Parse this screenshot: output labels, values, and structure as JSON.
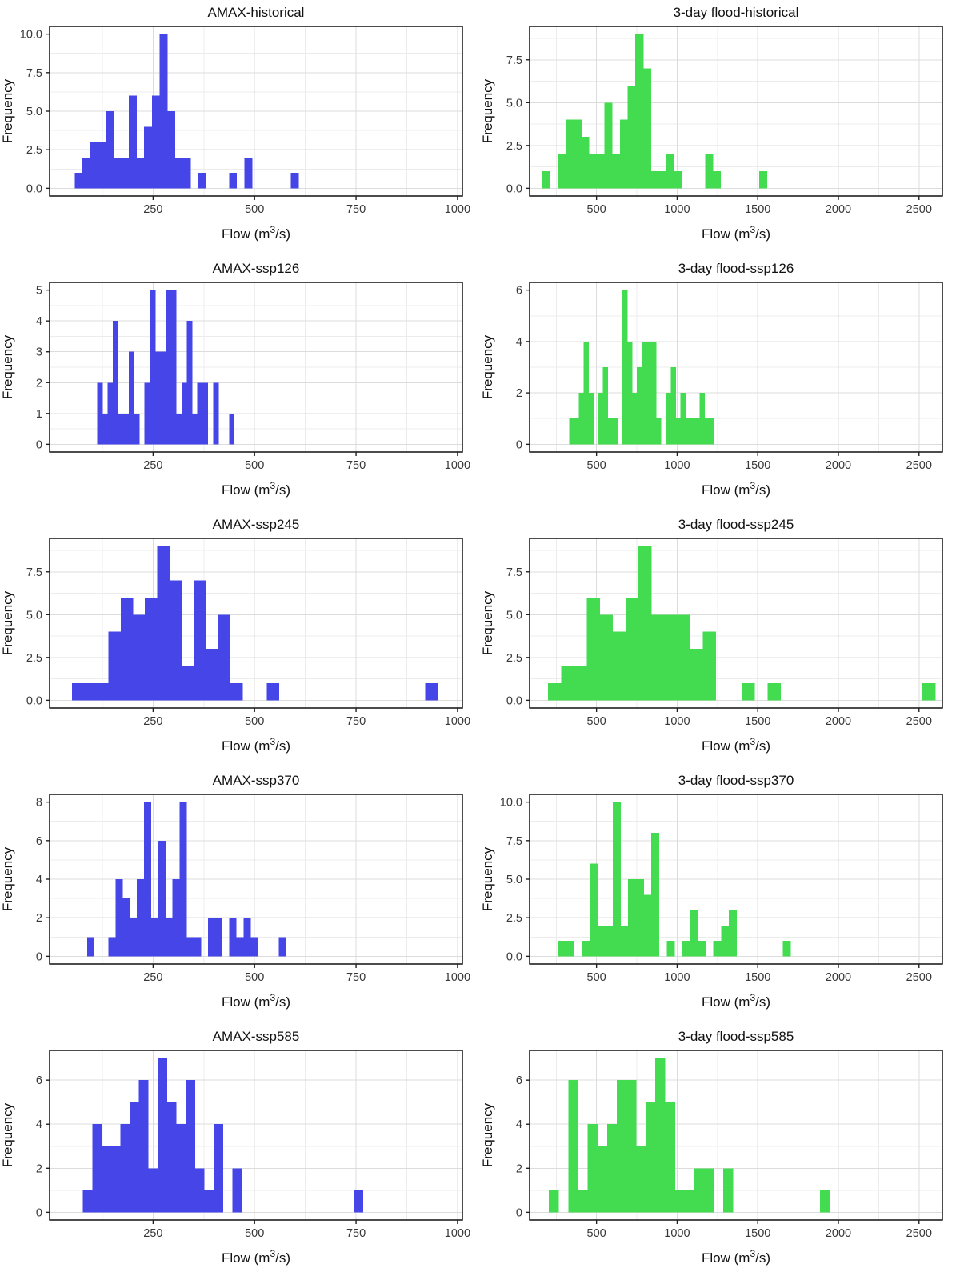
{
  "figure": {
    "background": "#ffffff",
    "xlabel_parts": {
      "pre": "Flow (m",
      "sup": "3",
      "post": "/s)"
    },
    "ylabel": "Frequency",
    "colors": {
      "amax_blue": "#4646E8",
      "flood_green": "#43DC51"
    },
    "style": {
      "panel_border": "#000000",
      "grid_major": "#DCDCDC",
      "grid_minor": "#ECECEC",
      "tick_color": "#222222",
      "tick_label_color": "#383838",
      "title_color": "#111111"
    }
  },
  "chart_data": [
    {
      "type": "bar",
      "subtype": "histogram",
      "title": "AMAX-historical",
      "series": "AMAX historical",
      "xlabel": "Flow (m³/s)",
      "ylabel": "Frequency",
      "color": "#4646E8",
      "bin_start": 57,
      "bin_width": 19,
      "counts": [
        1,
        2,
        3,
        3,
        5,
        2,
        2,
        6,
        2,
        4,
        6,
        10,
        5,
        2,
        2,
        0,
        1,
        0,
        0,
        0,
        1,
        0,
        2,
        0,
        0,
        0,
        0,
        0,
        1
      ],
      "x_ticks": [
        250,
        500,
        750,
        1000
      ],
      "x_tick_labels": [
        "250",
        "500",
        "750",
        "1000"
      ],
      "y_ticks": [
        0,
        2.5,
        5,
        7.5,
        10
      ],
      "y_tick_labels": [
        "0.0",
        "2.5",
        "5.0",
        "7.5",
        "10.0"
      ],
      "xlim": [
        -5,
        1012
      ],
      "grid": true,
      "legend": "none"
    },
    {
      "type": "bar",
      "subtype": "histogram",
      "title": "3-day flood-historical",
      "series": "3-day flood historical",
      "xlabel": "Flow (m³/s)",
      "ylabel": "Frequency",
      "color": "#43DC51",
      "bin_start": 165,
      "bin_width": 48,
      "counts": [
        1,
        0,
        2,
        4,
        4,
        3,
        2,
        2,
        5,
        2,
        4,
        6,
        9,
        7,
        1,
        1,
        2,
        1,
        0,
        0,
        0,
        2,
        1,
        0,
        0,
        0,
        0,
        0,
        1
      ],
      "x_ticks": [
        500,
        1000,
        1500,
        2000,
        2500
      ],
      "x_tick_labels": [
        "500",
        "1000",
        "1500",
        "2000",
        "2500"
      ],
      "y_ticks": [
        0,
        2.5,
        5,
        7.5
      ],
      "y_tick_labels": [
        "0.0",
        "2.5",
        "5.0",
        "7.5"
      ],
      "xlim": [
        85,
        2645
      ],
      "grid": true,
      "legend": "none"
    },
    {
      "type": "bar",
      "subtype": "histogram",
      "title": "AMAX-ssp126",
      "series": "AMAX ssp126",
      "xlabel": "Flow (m³/s)",
      "ylabel": "Frequency",
      "color": "#4646E8",
      "bin_start": 112,
      "bin_width": 13,
      "counts": [
        2,
        1,
        2,
        4,
        1,
        1,
        3,
        1,
        0,
        2,
        5,
        3,
        3,
        5,
        5,
        1,
        2,
        4,
        1,
        2,
        2,
        0,
        2,
        0,
        0,
        1
      ],
      "x_ticks": [
        250,
        500,
        750,
        1000
      ],
      "x_tick_labels": [
        "250",
        "500",
        "750",
        "1000"
      ],
      "y_ticks": [
        0,
        1,
        2,
        3,
        4,
        5
      ],
      "y_tick_labels": [
        "0",
        "1",
        "2",
        "3",
        "4",
        "5"
      ],
      "xlim": [
        -5,
        1012
      ],
      "grid": true,
      "legend": "none"
    },
    {
      "type": "bar",
      "subtype": "histogram",
      "title": "3-day flood-ssp126",
      "series": "3-day flood ssp126",
      "xlabel": "Flow (m³/s)",
      "ylabel": "Frequency",
      "color": "#43DC51",
      "bin_start": 330,
      "bin_width": 30,
      "counts": [
        1,
        1,
        2,
        4,
        2,
        0,
        2,
        3,
        1,
        1,
        0,
        6,
        4,
        2,
        3,
        4,
        4,
        4,
        1,
        0,
        2,
        3,
        1,
        2,
        1,
        1,
        1,
        2,
        1,
        1
      ],
      "x_ticks": [
        500,
        1000,
        1500,
        2000,
        2500
      ],
      "x_tick_labels": [
        "500",
        "1000",
        "1500",
        "2000",
        "2500"
      ],
      "y_ticks": [
        0,
        2,
        4,
        6
      ],
      "y_tick_labels": [
        "0",
        "2",
        "4",
        "6"
      ],
      "xlim": [
        85,
        2645
      ],
      "grid": true,
      "legend": "none"
    },
    {
      "type": "bar",
      "subtype": "histogram",
      "title": "AMAX-ssp245",
      "series": "AMAX ssp245",
      "xlabel": "Flow (m³/s)",
      "ylabel": "Frequency",
      "color": "#4646E8",
      "bin_start": 50,
      "bin_width": 30,
      "counts": [
        1,
        1,
        1,
        4,
        6,
        5,
        6,
        9,
        7,
        2,
        7,
        3,
        5,
        1,
        0,
        0,
        1,
        0,
        0,
        0,
        0,
        0,
        0,
        0,
        0,
        0,
        0,
        0,
        0,
        1
      ],
      "x_ticks": [
        250,
        500,
        750,
        1000
      ],
      "x_tick_labels": [
        "250",
        "500",
        "750",
        "1000"
      ],
      "y_ticks": [
        0,
        2.5,
        5,
        7.5
      ],
      "y_tick_labels": [
        "0.0",
        "2.5",
        "5.0",
        "7.5"
      ],
      "xlim": [
        -5,
        1012
      ],
      "grid": true,
      "legend": "none"
    },
    {
      "type": "bar",
      "subtype": "histogram",
      "title": "3-day flood-ssp245",
      "series": "3-day flood ssp245",
      "xlabel": "Flow (m³/s)",
      "ylabel": "Frequency",
      "color": "#43DC51",
      "bin_start": 200,
      "bin_width": 80,
      "counts": [
        1,
        2,
        2,
        6,
        5,
        4,
        6,
        9,
        5,
        5,
        5,
        3,
        4,
        0,
        0,
        1,
        0,
        1,
        0,
        0,
        0,
        0,
        0,
        0,
        0,
        0,
        0,
        0,
        0,
        1
      ],
      "x_ticks": [
        500,
        1000,
        1500,
        2000,
        2500
      ],
      "x_tick_labels": [
        "500",
        "1000",
        "1500",
        "2000",
        "2500"
      ],
      "y_ticks": [
        0,
        2.5,
        5,
        7.5
      ],
      "y_tick_labels": [
        "0.0",
        "2.5",
        "5.0",
        "7.5"
      ],
      "xlim": [
        85,
        2645
      ],
      "grid": true,
      "legend": "none"
    },
    {
      "type": "bar",
      "subtype": "histogram",
      "title": "AMAX-ssp370",
      "series": "AMAX ssp370",
      "xlabel": "Flow (m³/s)",
      "ylabel": "Frequency",
      "color": "#4646E8",
      "bin_start": 87.5,
      "bin_width": 17.5,
      "counts": [
        1,
        0,
        0,
        1,
        4,
        3,
        2,
        4,
        8,
        2,
        6,
        2,
        4,
        8,
        1,
        1,
        0,
        2,
        2,
        0,
        2,
        1,
        2,
        1,
        0,
        0,
        0,
        1
      ],
      "x_ticks": [
        250,
        500,
        750,
        1000
      ],
      "x_tick_labels": [
        "250",
        "500",
        "750",
        "1000"
      ],
      "y_ticks": [
        0,
        2,
        4,
        6,
        8
      ],
      "y_tick_labels": [
        "0",
        "2",
        "4",
        "6",
        "8"
      ],
      "xlim": [
        -5,
        1012
      ],
      "grid": true,
      "legend": "none"
    },
    {
      "type": "bar",
      "subtype": "histogram",
      "title": "3-day flood-ssp370",
      "series": "3-day flood ssp370",
      "xlabel": "Flow (m³/s)",
      "ylabel": "Frequency",
      "color": "#43DC51",
      "bin_start": 264,
      "bin_width": 48,
      "counts": [
        1,
        1,
        0,
        1,
        6,
        2,
        2,
        10,
        2,
        5,
        5,
        4,
        8,
        0,
        1,
        0,
        1,
        3,
        1,
        0,
        1,
        2,
        3,
        0,
        0,
        0,
        0,
        0,
        0,
        1
      ],
      "x_ticks": [
        500,
        1000,
        1500,
        2000,
        2500
      ],
      "x_tick_labels": [
        "500",
        "1000",
        "1500",
        "2000",
        "2500"
      ],
      "y_ticks": [
        0,
        2.5,
        5,
        7.5,
        10
      ],
      "y_tick_labels": [
        "0.0",
        "2.5",
        "5.0",
        "7.5",
        "10.0"
      ],
      "xlim": [
        85,
        2645
      ],
      "grid": true,
      "legend": "none"
    },
    {
      "type": "bar",
      "subtype": "histogram",
      "title": "AMAX-ssp585",
      "series": "AMAX ssp585",
      "xlabel": "Flow (m³/s)",
      "ylabel": "Frequency",
      "color": "#4646E8",
      "bin_start": 77,
      "bin_width": 23,
      "counts": [
        1,
        4,
        3,
        3,
        4,
        5,
        6,
        2,
        7,
        5,
        4,
        6,
        2,
        1,
        4,
        0,
        2,
        0,
        0,
        0,
        0,
        0,
        0,
        0,
        0,
        0,
        0,
        0,
        0,
        1
      ],
      "x_ticks": [
        250,
        500,
        750,
        1000
      ],
      "x_tick_labels": [
        "250",
        "500",
        "750",
        "1000"
      ],
      "y_ticks": [
        0,
        2,
        4,
        6
      ],
      "y_tick_labels": [
        "0",
        "2",
        "4",
        "6"
      ],
      "xlim": [
        -5,
        1012
      ],
      "grid": true,
      "legend": "none"
    },
    {
      "type": "bar",
      "subtype": "histogram",
      "title": "3-day flood-ssp585",
      "series": "3-day flood ssp585",
      "xlabel": "Flow (m³/s)",
      "ylabel": "Frequency",
      "color": "#43DC51",
      "bin_start": 205,
      "bin_width": 60,
      "counts": [
        1,
        0,
        6,
        1,
        4,
        3,
        4,
        6,
        6,
        3,
        5,
        7,
        5,
        1,
        1,
        2,
        2,
        0,
        2,
        0,
        0,
        0,
        0,
        0,
        0,
        0,
        0,
        0,
        1
      ],
      "x_ticks": [
        500,
        1000,
        1500,
        2000,
        2500
      ],
      "x_tick_labels": [
        "500",
        "1000",
        "1500",
        "2000",
        "2500"
      ],
      "y_ticks": [
        0,
        2,
        4,
        6
      ],
      "y_tick_labels": [
        "0",
        "2",
        "4",
        "6"
      ],
      "xlim": [
        85,
        2645
      ],
      "grid": true,
      "legend": "none"
    }
  ]
}
